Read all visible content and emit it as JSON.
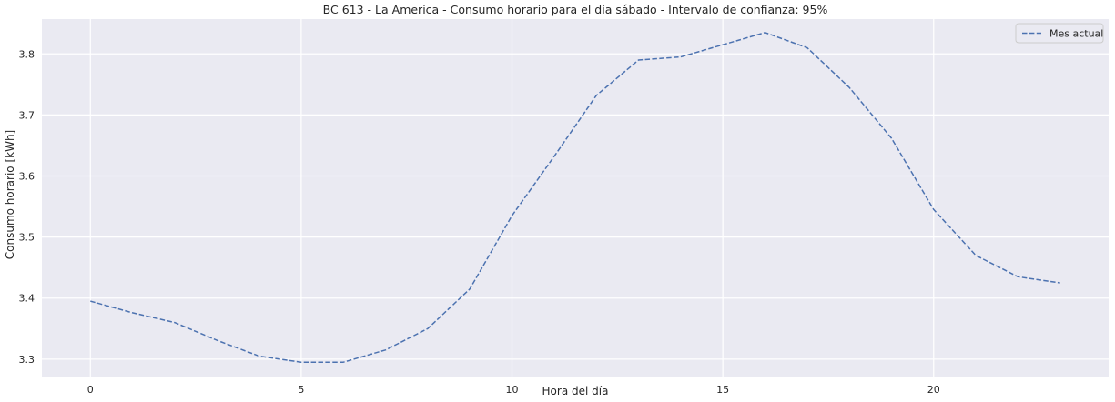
{
  "chart_data": {
    "type": "line",
    "title": "BC 613 - La America - Consumo horario para el día sábado - Intervalo de confianza: 95%",
    "xlabel": "Hora del día",
    "ylabel": "Consumo horario [kWh]",
    "xlim": [
      -1.15,
      24.15
    ],
    "ylim": [
      3.27,
      3.857
    ],
    "xticks": [
      0,
      5,
      10,
      15,
      20
    ],
    "yticks": [
      3.3,
      3.4,
      3.5,
      3.6,
      3.7,
      3.8
    ],
    "ytick_labels": [
      "3.3",
      "3.4",
      "3.5",
      "3.6",
      "3.7",
      "3.8"
    ],
    "grid": true,
    "legend_position": "top-right",
    "background": "#eaeaf2",
    "series": [
      {
        "name": "Mes actual",
        "color": "#4c72b0",
        "linestyle": "dashed",
        "x": [
          0,
          1,
          2,
          3,
          4,
          5,
          6,
          7,
          8,
          9,
          10,
          11,
          12,
          13,
          14,
          15,
          16,
          17,
          18,
          19,
          20,
          21,
          22,
          23
        ],
        "y": [
          3.395,
          3.376,
          3.36,
          3.331,
          3.305,
          3.295,
          3.295,
          3.315,
          3.35,
          3.415,
          3.535,
          3.632,
          3.732,
          3.79,
          3.795,
          3.815,
          3.835,
          3.81,
          3.745,
          3.662,
          3.545,
          3.47,
          3.435,
          3.425
        ]
      }
    ]
  }
}
